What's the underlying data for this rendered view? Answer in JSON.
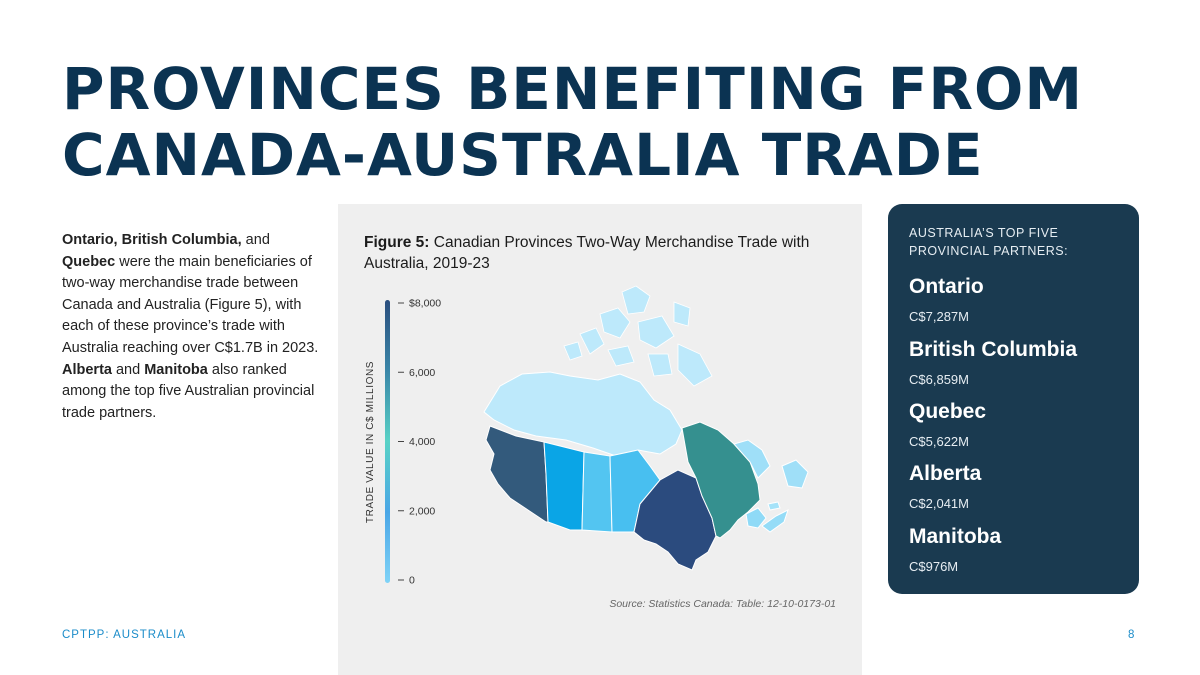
{
  "title": {
    "line1": "PROVINCES BENEFITING FROM",
    "line2": "CANADA-AUSTRALIA TRADE"
  },
  "intro": {
    "p1": "Ontario, British Columbia,",
    "p2": " and ",
    "p3": "Quebec",
    "p4": " were the main beneficiaries of two-way merchandise trade between Canada and Australia (Figure 5), with each of these province’s trade with Australia reaching over C$1.7B in 2023. ",
    "p5": "Alberta",
    "p6": " and ",
    "p7": "Manitoba",
    "p8": " also ranked among the top five Australian provincial trade partners."
  },
  "figure": {
    "label": "Figure 5:",
    "caption": " Canadian Provinces Two-Way Merchandise Trade with Australia, 2019-23",
    "source": "Source: Statistics Canada: Table: 12-10-0173-01"
  },
  "legend": {
    "axis_title": "TRADE VALUE IN C$ MILLIONS",
    "ticks": [
      {
        "value": 0,
        "label": "0"
      },
      {
        "value": 2000,
        "label": "2,000"
      },
      {
        "value": 4000,
        "label": "4,000"
      },
      {
        "value": 6000,
        "label": "6,000"
      },
      {
        "value": 8000,
        "label": "$8,000"
      }
    ],
    "range": [
      0,
      8000
    ],
    "gradient_colors": [
      "#7fd3f7",
      "#4aa6e6",
      "#59d2c6",
      "#3a86a8",
      "#2a4e7e"
    ]
  },
  "chart_data": {
    "type": "choropleth",
    "regions": [
      {
        "name": "British Columbia",
        "value": 6859,
        "color": "#335a7c"
      },
      {
        "name": "Alberta",
        "value": 2041,
        "color": "#0aa5e6"
      },
      {
        "name": "Saskatchewan",
        "value": 500,
        "color": "#53c5f1"
      },
      {
        "name": "Manitoba",
        "value": 976,
        "color": "#48bff0"
      },
      {
        "name": "Ontario",
        "value": 7287,
        "color": "#2b4b7e"
      },
      {
        "name": "Quebec",
        "value": 5622,
        "color": "#35908f"
      },
      {
        "name": "Newfoundland and Labrador",
        "value": 300,
        "color": "#9fdff8"
      },
      {
        "name": "New Brunswick",
        "value": 300,
        "color": "#8fdaf7"
      },
      {
        "name": "Nova Scotia",
        "value": 300,
        "color": "#95dcf7"
      },
      {
        "name": "Prince Edward Island",
        "value": 100,
        "color": "#a6e3f9"
      },
      {
        "name": "Yukon",
        "value": 10,
        "color": "#bde9fb"
      },
      {
        "name": "Northwest Territories",
        "value": 10,
        "color": "#bde9fb"
      },
      {
        "name": "Nunavut",
        "value": 10,
        "color": "#bde9fb"
      }
    ]
  },
  "sidebar": {
    "heading": "AUSTRALIA’S TOP FIVE PROVINCIAL PARTNERS:",
    "partners": [
      {
        "name": "Ontario",
        "value": "C$7,287M"
      },
      {
        "name": "British Columbia",
        "value": "C$6,859M"
      },
      {
        "name": "Quebec",
        "value": "C$5,622M"
      },
      {
        "name": "Alberta",
        "value": "C$2,041M"
      },
      {
        "name": "Manitoba",
        "value": "C$976M"
      }
    ]
  },
  "footer": {
    "left": "CPTPP: AUSTRALIA",
    "page": "8"
  }
}
